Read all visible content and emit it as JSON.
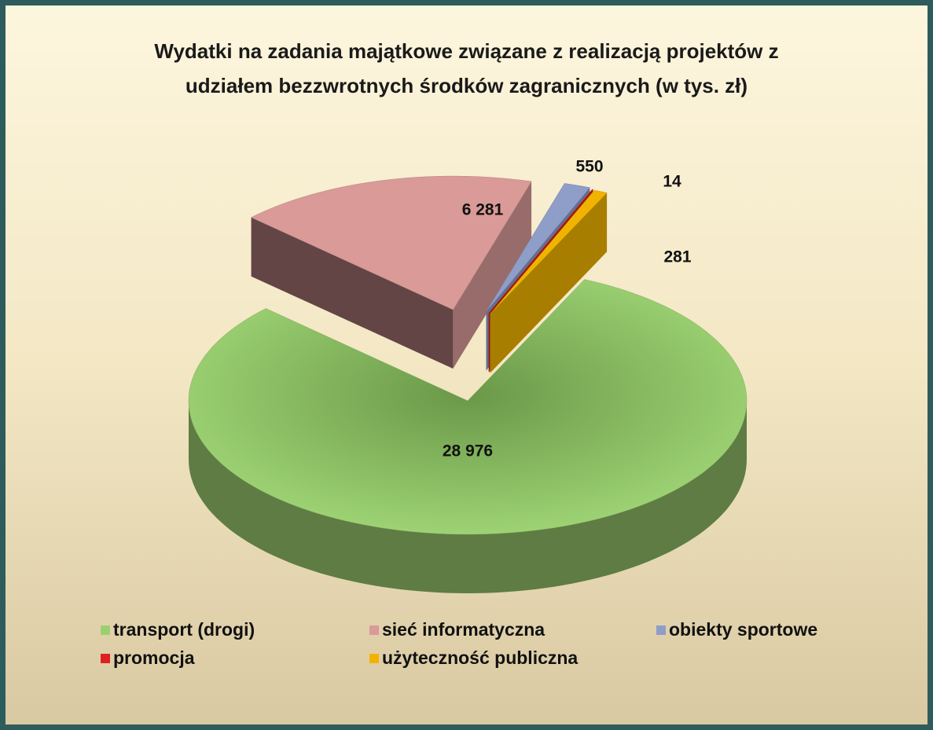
{
  "chart_data": {
    "type": "pie3d",
    "title": "Wydatki na zadania majątkowe związane z realizacją projektów z udziałem bezzwrotnych środków zagranicznych (w tys. zł)",
    "categories": [
      "transport (drogi)",
      "sieć informatyczna",
      "obiekty sportowe",
      "promocja",
      "użyteczność publiczna"
    ],
    "values": [
      28976,
      6281,
      550,
      14,
      281
    ],
    "value_labels": [
      "28 976",
      "6 281",
      "550",
      "14",
      "281"
    ],
    "colors": [
      "#9ccf70",
      "#d99a98",
      "#8e9ec8",
      "#e02020",
      "#f0b400"
    ],
    "legend": "bottom"
  }
}
